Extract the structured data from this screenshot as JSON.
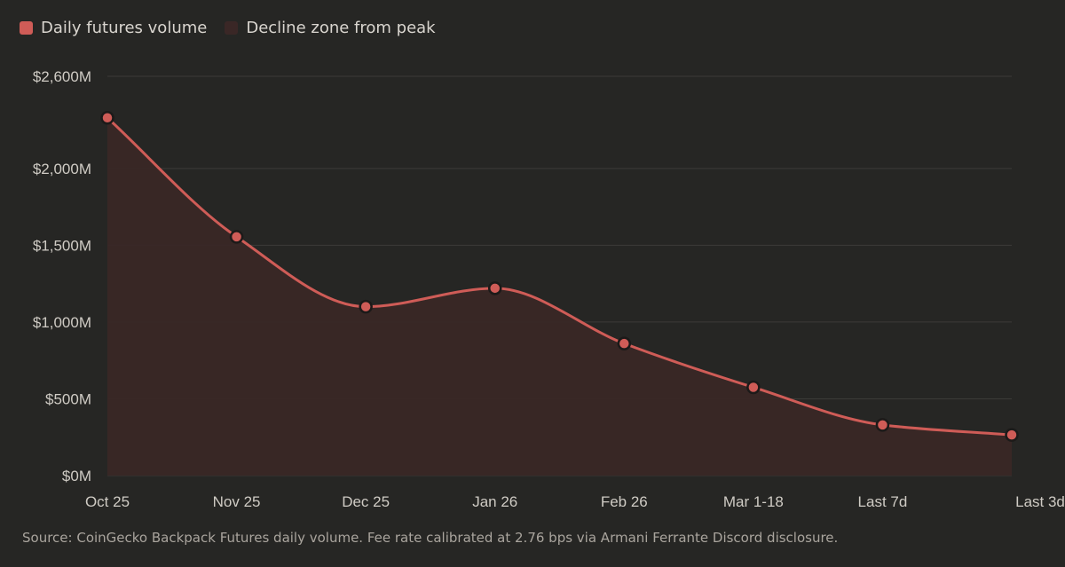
{
  "chart_data": {
    "type": "area",
    "categories": [
      "Oct 25",
      "Nov 25",
      "Dec 25",
      "Jan 26",
      "Feb 26",
      "Mar 1-18",
      "Last 7d",
      "Last 3d"
    ],
    "series": [
      {
        "name": "Daily futures volume",
        "values": [
          2330,
          1555,
          1100,
          1220,
          860,
          575,
          330,
          265
        ]
      }
    ],
    "ylim": [
      0,
      2600
    ],
    "yticks": [
      0,
      500,
      1000,
      1500,
      2000,
      2600
    ],
    "ytick_labels": [
      "$0M",
      "$500M",
      "$1,000M",
      "$1,500M",
      "$2,000M",
      "$2,600M"
    ],
    "legend": [
      "Daily futures volume",
      "Decline zone from peak"
    ],
    "xlabel": "",
    "ylabel": "",
    "grid": true
  },
  "legend": {
    "line_label": "Daily futures volume",
    "area_label": "Decline zone from peak"
  },
  "source": "Source: CoinGecko Backpack Futures daily volume. Fee rate calibrated at 2.76 bps via Armani Ferrante Discord disclosure.",
  "colors": {
    "line": "#cf5c57",
    "area": "#3a2726",
    "background": "#262624",
    "grid": "#3c3b38"
  }
}
